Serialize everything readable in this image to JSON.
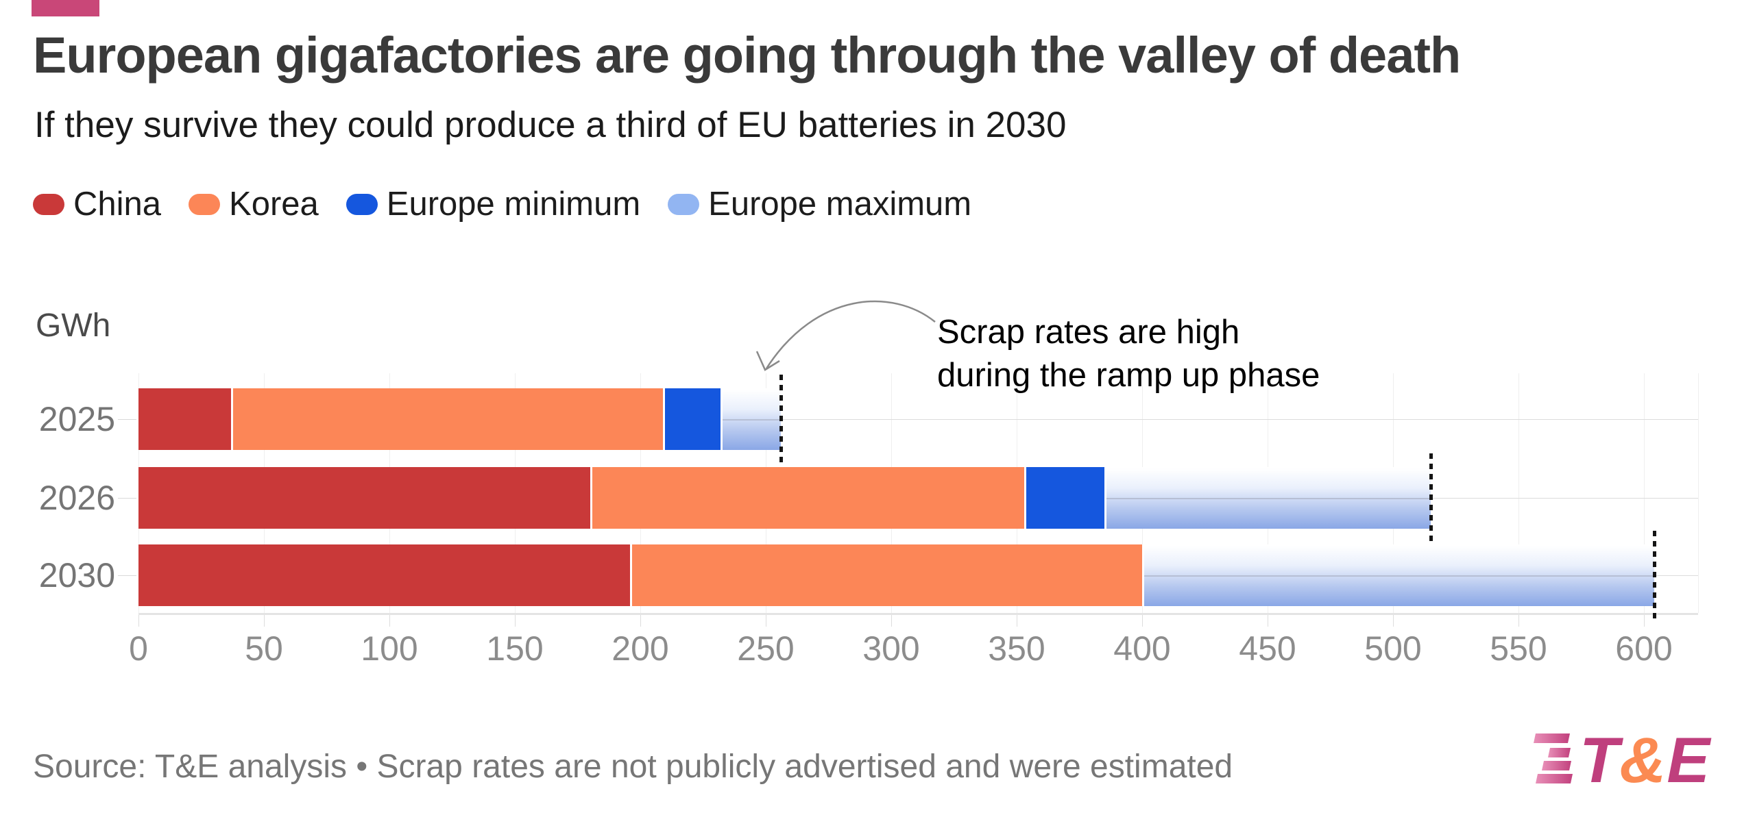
{
  "header": {
    "accent_color": "#c94778",
    "title": "European gigafactories are going through the valley of death",
    "subtitle": "If they survive they could produce a third of EU batteries in 2030"
  },
  "legend": [
    {
      "label": "China",
      "color": "#c93939"
    },
    {
      "label": "Korea",
      "color": "#fc8657"
    },
    {
      "label": "Europe minimum",
      "color": "#1557de"
    },
    {
      "label": "Europe maximum",
      "color": "#92b5f2"
    }
  ],
  "chart_data": {
    "type": "bar",
    "orientation": "horizontal-stacked",
    "title": "European gigafactories are going through the valley of death",
    "subtitle": "If they survive they could produce a third of EU batteries in 2030",
    "unit_label": "GWh",
    "categories": [
      "2025",
      "2026",
      "2030"
    ],
    "series": [
      {
        "name": "China",
        "values": [
          37,
          180,
          196
        ],
        "color": "#c93939"
      },
      {
        "name": "Korea",
        "values": [
          172,
          173,
          204
        ],
        "color": "#fc8657"
      },
      {
        "name": "Europe minimum",
        "values": [
          23,
          32,
          0
        ],
        "color": "#1557de"
      },
      {
        "name": "Europe maximum",
        "values": [
          24,
          130,
          204
        ],
        "color": "#92b5f2",
        "gradient": [
          "#ffffff",
          "#8aa7e6"
        ],
        "note": "drawn as white-to-blue gradient from end of Europe minimum up to the maximum total"
      }
    ],
    "europe_max_totals": [
      256,
      515,
      604
    ],
    "dotted_markers": [
      256,
      515,
      604
    ],
    "xlim": [
      0,
      620
    ],
    "x_ticks": [
      0,
      50,
      100,
      150,
      200,
      250,
      300,
      350,
      400,
      450,
      500,
      550,
      600
    ],
    "grid": true,
    "legend_position": "top",
    "annotation": {
      "line1": "Scrap rates are high",
      "line2": "during the ramp up phase"
    }
  },
  "footer": {
    "source": "Source: T&E analysis • Scrap rates are not publicly advertised and were estimated",
    "logo": {
      "letters": [
        {
          "ch": "T",
          "color": "#bf3f7d"
        },
        {
          "ch": "&",
          "color": "#fb8a52"
        },
        {
          "ch": "E",
          "color": "#bf3f7d"
        }
      ]
    }
  }
}
